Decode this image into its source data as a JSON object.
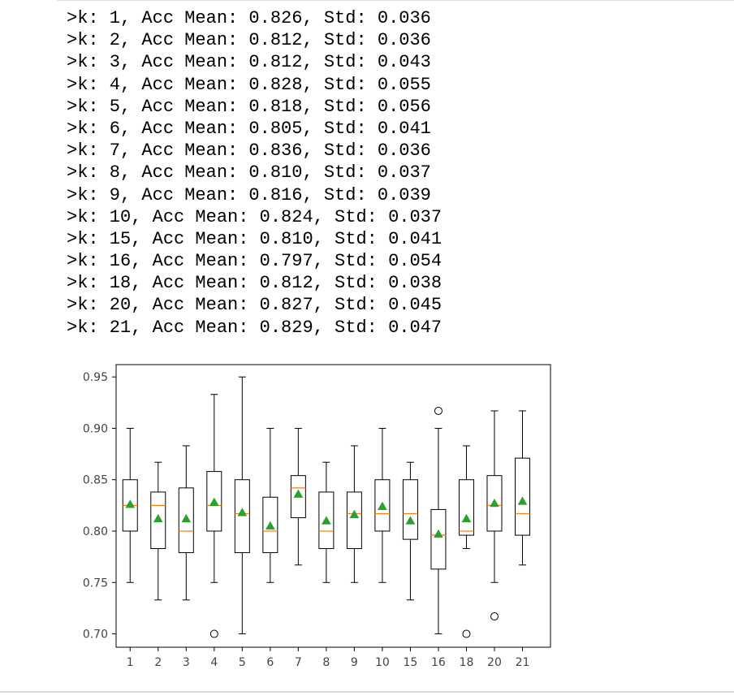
{
  "output_lines": [
    ">k: 1, Acc Mean: 0.826, Std: 0.036",
    ">k: 2, Acc Mean: 0.812, Std: 0.036",
    ">k: 3, Acc Mean: 0.812, Std: 0.043",
    ">k: 4, Acc Mean: 0.828, Std: 0.055",
    ">k: 5, Acc Mean: 0.818, Std: 0.056",
    ">k: 6, Acc Mean: 0.805, Std: 0.041",
    ">k: 7, Acc Mean: 0.836, Std: 0.036",
    ">k: 8, Acc Mean: 0.810, Std: 0.037",
    ">k: 9, Acc Mean: 0.816, Std: 0.039",
    ">k: 10, Acc Mean: 0.824, Std: 0.037",
    ">k: 15, Acc Mean: 0.810, Std: 0.041",
    ">k: 16, Acc Mean: 0.797, Std: 0.054",
    ">k: 18, Acc Mean: 0.812, Std: 0.038",
    ">k: 20, Acc Mean: 0.827, Std: 0.045",
    ">k: 21, Acc Mean: 0.829, Std: 0.047"
  ],
  "chart_data": {
    "type": "boxplot",
    "title": "",
    "xlabel": "",
    "ylabel": "",
    "ylim": [
      0.687,
      0.962
    ],
    "yticks": [
      0.7,
      0.75,
      0.8,
      0.85,
      0.9,
      0.95
    ],
    "ytick_labels": [
      "0.70",
      "0.75",
      "0.80",
      "0.85",
      "0.90",
      "0.95"
    ],
    "grid": false,
    "categories": [
      "1",
      "2",
      "3",
      "4",
      "5",
      "6",
      "7",
      "8",
      "9",
      "10",
      "15",
      "16",
      "18",
      "20",
      "21"
    ],
    "boxes": [
      {
        "label": "1",
        "whislo": 0.75,
        "q1": 0.8,
        "med": 0.825,
        "q3": 0.85,
        "whishi": 0.9,
        "mean": 0.826,
        "fliers": []
      },
      {
        "label": "2",
        "whislo": 0.733,
        "q1": 0.783,
        "med": 0.825,
        "q3": 0.838,
        "whishi": 0.867,
        "mean": 0.812,
        "fliers": []
      },
      {
        "label": "3",
        "whislo": 0.733,
        "q1": 0.779,
        "med": 0.8,
        "q3": 0.842,
        "whishi": 0.883,
        "mean": 0.812,
        "fliers": []
      },
      {
        "label": "4",
        "whislo": 0.75,
        "q1": 0.8,
        "med": 0.825,
        "q3": 0.858,
        "whishi": 0.933,
        "mean": 0.828,
        "fliers": [
          0.7
        ]
      },
      {
        "label": "5",
        "whislo": 0.7,
        "q1": 0.779,
        "med": 0.817,
        "q3": 0.85,
        "whishi": 0.95,
        "mean": 0.818,
        "fliers": []
      },
      {
        "label": "6",
        "whislo": 0.75,
        "q1": 0.779,
        "med": 0.8,
        "q3": 0.833,
        "whishi": 0.9,
        "mean": 0.805,
        "fliers": []
      },
      {
        "label": "7",
        "whislo": 0.767,
        "q1": 0.813,
        "med": 0.842,
        "q3": 0.854,
        "whishi": 0.9,
        "mean": 0.836,
        "fliers": []
      },
      {
        "label": "8",
        "whislo": 0.75,
        "q1": 0.783,
        "med": 0.8,
        "q3": 0.838,
        "whishi": 0.867,
        "mean": 0.81,
        "fliers": []
      },
      {
        "label": "9",
        "whislo": 0.75,
        "q1": 0.783,
        "med": 0.817,
        "q3": 0.838,
        "whishi": 0.883,
        "mean": 0.816,
        "fliers": []
      },
      {
        "label": "10",
        "whislo": 0.75,
        "q1": 0.8,
        "med": 0.817,
        "q3": 0.85,
        "whishi": 0.9,
        "mean": 0.824,
        "fliers": []
      },
      {
        "label": "15",
        "whislo": 0.733,
        "q1": 0.792,
        "med": 0.817,
        "q3": 0.85,
        "whishi": 0.867,
        "mean": 0.81,
        "fliers": []
      },
      {
        "label": "16",
        "whislo": 0.7,
        "q1": 0.763,
        "med": 0.796,
        "q3": 0.821,
        "whishi": 0.9,
        "mean": 0.797,
        "fliers": [
          0.917
        ]
      },
      {
        "label": "18",
        "whislo": 0.783,
        "q1": 0.796,
        "med": 0.8,
        "q3": 0.85,
        "whishi": 0.883,
        "mean": 0.812,
        "fliers": [
          0.7
        ]
      },
      {
        "label": "20",
        "whislo": 0.75,
        "q1": 0.8,
        "med": 0.825,
        "q3": 0.854,
        "whishi": 0.917,
        "mean": 0.827,
        "fliers": [
          0.717
        ]
      },
      {
        "label": "21",
        "whislo": 0.767,
        "q1": 0.796,
        "med": 0.817,
        "q3": 0.871,
        "whishi": 0.917,
        "mean": 0.829,
        "fliers": []
      }
    ],
    "colors": {
      "box": "#000000",
      "median": "#ff7f0e",
      "mean": "#2ca02c",
      "flier": "#000000",
      "axis": "#000000",
      "tick_text": "#444444"
    }
  }
}
